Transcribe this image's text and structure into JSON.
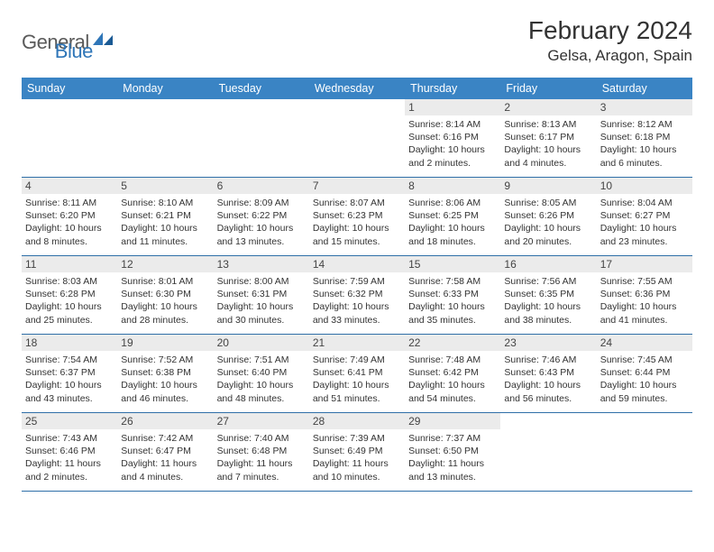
{
  "logo": {
    "text1": "General",
    "text2": "Blue"
  },
  "title": "February 2024",
  "location": "Gelsa, Aragon, Spain",
  "colors": {
    "header_bg": "#3a84c4",
    "header_text": "#ffffff",
    "daynum_bg": "#ebebeb",
    "week_border": "#2f6fa8",
    "text": "#333333",
    "logo_gray": "#5a5a5a",
    "logo_blue": "#2f76b8"
  },
  "typography": {
    "title_fontsize": 28,
    "location_fontsize": 17,
    "dayheader_fontsize": 12.5,
    "daynum_fontsize": 12,
    "dayinfo_fontsize": 10.5,
    "logo_fontsize": 22
  },
  "day_names": [
    "Sunday",
    "Monday",
    "Tuesday",
    "Wednesday",
    "Thursday",
    "Friday",
    "Saturday"
  ],
  "weeks": [
    [
      {
        "n": "",
        "sr": "",
        "ss": "",
        "dl": ""
      },
      {
        "n": "",
        "sr": "",
        "ss": "",
        "dl": ""
      },
      {
        "n": "",
        "sr": "",
        "ss": "",
        "dl": ""
      },
      {
        "n": "",
        "sr": "",
        "ss": "",
        "dl": ""
      },
      {
        "n": "1",
        "sr": "Sunrise: 8:14 AM",
        "ss": "Sunset: 6:16 PM",
        "dl": "Daylight: 10 hours and 2 minutes."
      },
      {
        "n": "2",
        "sr": "Sunrise: 8:13 AM",
        "ss": "Sunset: 6:17 PM",
        "dl": "Daylight: 10 hours and 4 minutes."
      },
      {
        "n": "3",
        "sr": "Sunrise: 8:12 AM",
        "ss": "Sunset: 6:18 PM",
        "dl": "Daylight: 10 hours and 6 minutes."
      }
    ],
    [
      {
        "n": "4",
        "sr": "Sunrise: 8:11 AM",
        "ss": "Sunset: 6:20 PM",
        "dl": "Daylight: 10 hours and 8 minutes."
      },
      {
        "n": "5",
        "sr": "Sunrise: 8:10 AM",
        "ss": "Sunset: 6:21 PM",
        "dl": "Daylight: 10 hours and 11 minutes."
      },
      {
        "n": "6",
        "sr": "Sunrise: 8:09 AM",
        "ss": "Sunset: 6:22 PM",
        "dl": "Daylight: 10 hours and 13 minutes."
      },
      {
        "n": "7",
        "sr": "Sunrise: 8:07 AM",
        "ss": "Sunset: 6:23 PM",
        "dl": "Daylight: 10 hours and 15 minutes."
      },
      {
        "n": "8",
        "sr": "Sunrise: 8:06 AM",
        "ss": "Sunset: 6:25 PM",
        "dl": "Daylight: 10 hours and 18 minutes."
      },
      {
        "n": "9",
        "sr": "Sunrise: 8:05 AM",
        "ss": "Sunset: 6:26 PM",
        "dl": "Daylight: 10 hours and 20 minutes."
      },
      {
        "n": "10",
        "sr": "Sunrise: 8:04 AM",
        "ss": "Sunset: 6:27 PM",
        "dl": "Daylight: 10 hours and 23 minutes."
      }
    ],
    [
      {
        "n": "11",
        "sr": "Sunrise: 8:03 AM",
        "ss": "Sunset: 6:28 PM",
        "dl": "Daylight: 10 hours and 25 minutes."
      },
      {
        "n": "12",
        "sr": "Sunrise: 8:01 AM",
        "ss": "Sunset: 6:30 PM",
        "dl": "Daylight: 10 hours and 28 minutes."
      },
      {
        "n": "13",
        "sr": "Sunrise: 8:00 AM",
        "ss": "Sunset: 6:31 PM",
        "dl": "Daylight: 10 hours and 30 minutes."
      },
      {
        "n": "14",
        "sr": "Sunrise: 7:59 AM",
        "ss": "Sunset: 6:32 PM",
        "dl": "Daylight: 10 hours and 33 minutes."
      },
      {
        "n": "15",
        "sr": "Sunrise: 7:58 AM",
        "ss": "Sunset: 6:33 PM",
        "dl": "Daylight: 10 hours and 35 minutes."
      },
      {
        "n": "16",
        "sr": "Sunrise: 7:56 AM",
        "ss": "Sunset: 6:35 PM",
        "dl": "Daylight: 10 hours and 38 minutes."
      },
      {
        "n": "17",
        "sr": "Sunrise: 7:55 AM",
        "ss": "Sunset: 6:36 PM",
        "dl": "Daylight: 10 hours and 41 minutes."
      }
    ],
    [
      {
        "n": "18",
        "sr": "Sunrise: 7:54 AM",
        "ss": "Sunset: 6:37 PM",
        "dl": "Daylight: 10 hours and 43 minutes."
      },
      {
        "n": "19",
        "sr": "Sunrise: 7:52 AM",
        "ss": "Sunset: 6:38 PM",
        "dl": "Daylight: 10 hours and 46 minutes."
      },
      {
        "n": "20",
        "sr": "Sunrise: 7:51 AM",
        "ss": "Sunset: 6:40 PM",
        "dl": "Daylight: 10 hours and 48 minutes."
      },
      {
        "n": "21",
        "sr": "Sunrise: 7:49 AM",
        "ss": "Sunset: 6:41 PM",
        "dl": "Daylight: 10 hours and 51 minutes."
      },
      {
        "n": "22",
        "sr": "Sunrise: 7:48 AM",
        "ss": "Sunset: 6:42 PM",
        "dl": "Daylight: 10 hours and 54 minutes."
      },
      {
        "n": "23",
        "sr": "Sunrise: 7:46 AM",
        "ss": "Sunset: 6:43 PM",
        "dl": "Daylight: 10 hours and 56 minutes."
      },
      {
        "n": "24",
        "sr": "Sunrise: 7:45 AM",
        "ss": "Sunset: 6:44 PM",
        "dl": "Daylight: 10 hours and 59 minutes."
      }
    ],
    [
      {
        "n": "25",
        "sr": "Sunrise: 7:43 AM",
        "ss": "Sunset: 6:46 PM",
        "dl": "Daylight: 11 hours and 2 minutes."
      },
      {
        "n": "26",
        "sr": "Sunrise: 7:42 AM",
        "ss": "Sunset: 6:47 PM",
        "dl": "Daylight: 11 hours and 4 minutes."
      },
      {
        "n": "27",
        "sr": "Sunrise: 7:40 AM",
        "ss": "Sunset: 6:48 PM",
        "dl": "Daylight: 11 hours and 7 minutes."
      },
      {
        "n": "28",
        "sr": "Sunrise: 7:39 AM",
        "ss": "Sunset: 6:49 PM",
        "dl": "Daylight: 11 hours and 10 minutes."
      },
      {
        "n": "29",
        "sr": "Sunrise: 7:37 AM",
        "ss": "Sunset: 6:50 PM",
        "dl": "Daylight: 11 hours and 13 minutes."
      },
      {
        "n": "",
        "sr": "",
        "ss": "",
        "dl": ""
      },
      {
        "n": "",
        "sr": "",
        "ss": "",
        "dl": ""
      }
    ]
  ]
}
